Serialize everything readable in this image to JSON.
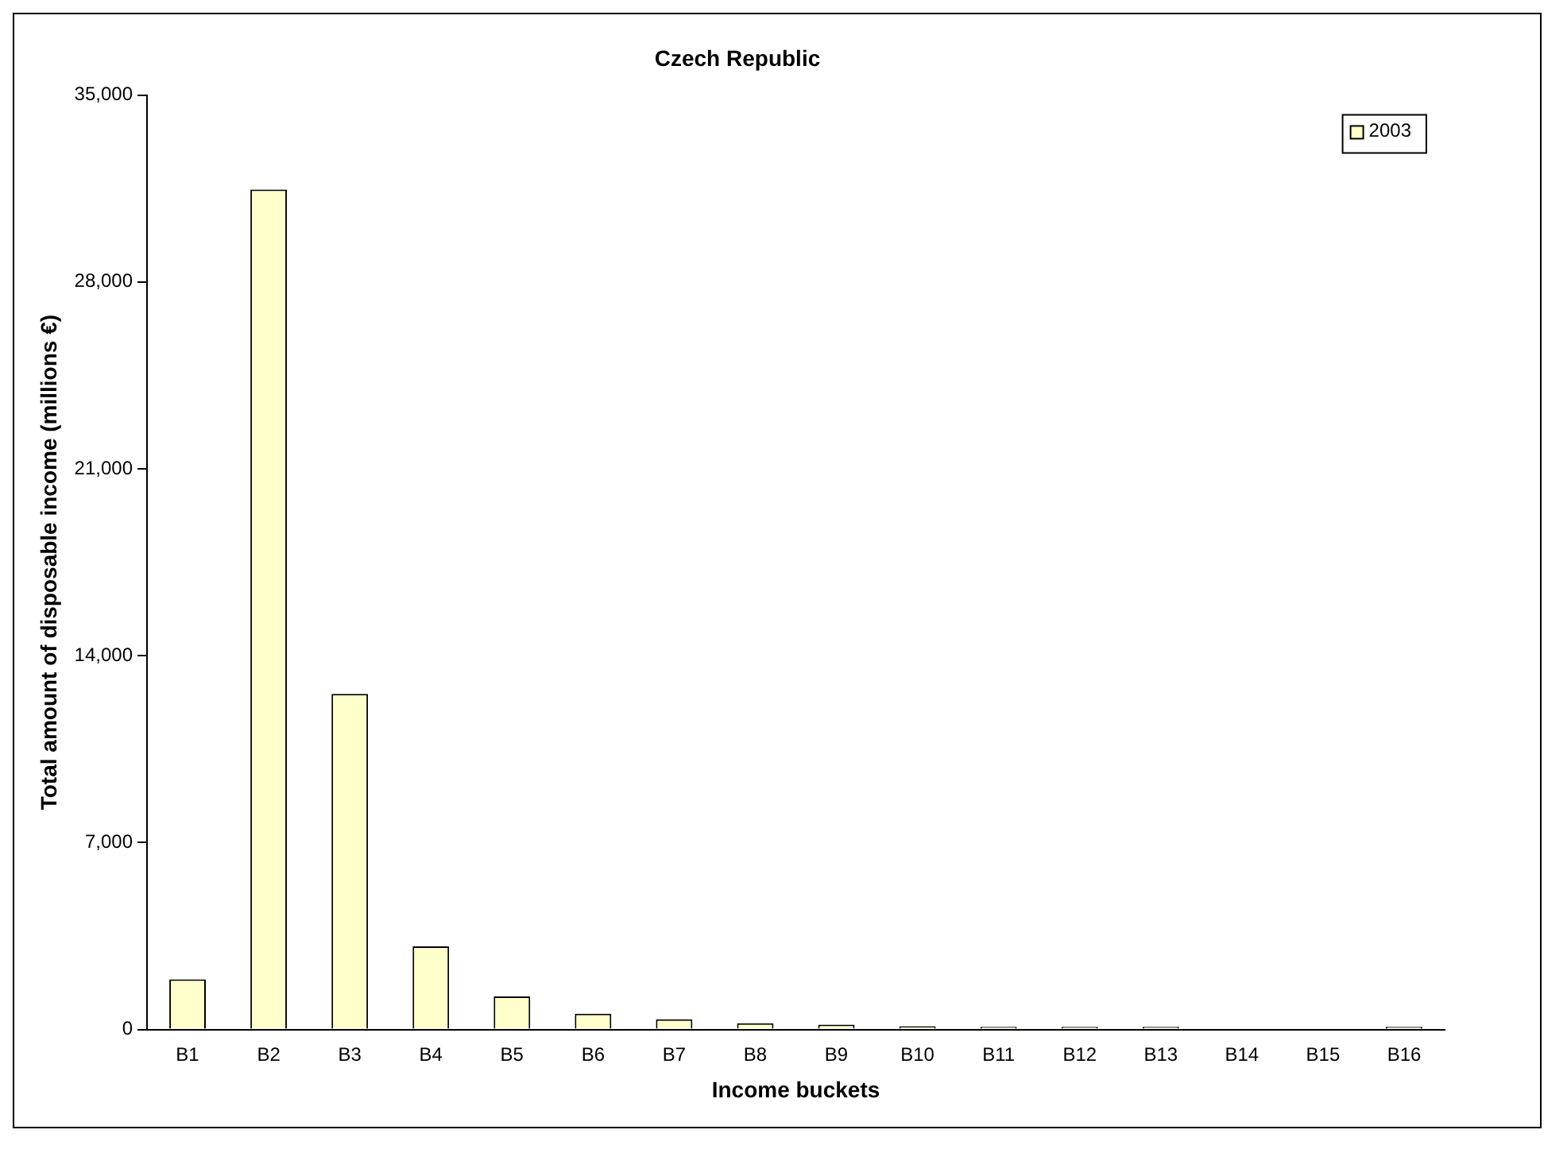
{
  "chart_data": {
    "type": "bar",
    "title": "Czech Republic",
    "xlabel": "Income buckets",
    "ylabel": "Total amount of disposable income (millions €)",
    "categories": [
      "B1",
      "B2",
      "B3",
      "B4",
      "B5",
      "B6",
      "B7",
      "B8",
      "B9",
      "B10",
      "B11",
      "B12",
      "B13",
      "B14",
      "B15",
      "B16"
    ],
    "series": [
      {
        "name": "2003",
        "color": "#ffffcc",
        "values": [
          1880,
          31460,
          12570,
          3110,
          1240,
          590,
          380,
          230,
          180,
          120,
          100,
          100,
          100,
          0,
          0,
          100
        ]
      }
    ],
    "ylim": [
      0,
      35000
    ],
    "yticks": [
      0,
      {
        "value": 7000,
        "label": "7,000"
      },
      {
        "value": 14000,
        "label": "14,000"
      },
      {
        "value": 21000,
        "label": "21,000"
      },
      {
        "value": 28000,
        "label": "28,000"
      },
      {
        "value": 35000,
        "label": "35,000"
      }
    ],
    "grid": false,
    "legend": "top right"
  }
}
